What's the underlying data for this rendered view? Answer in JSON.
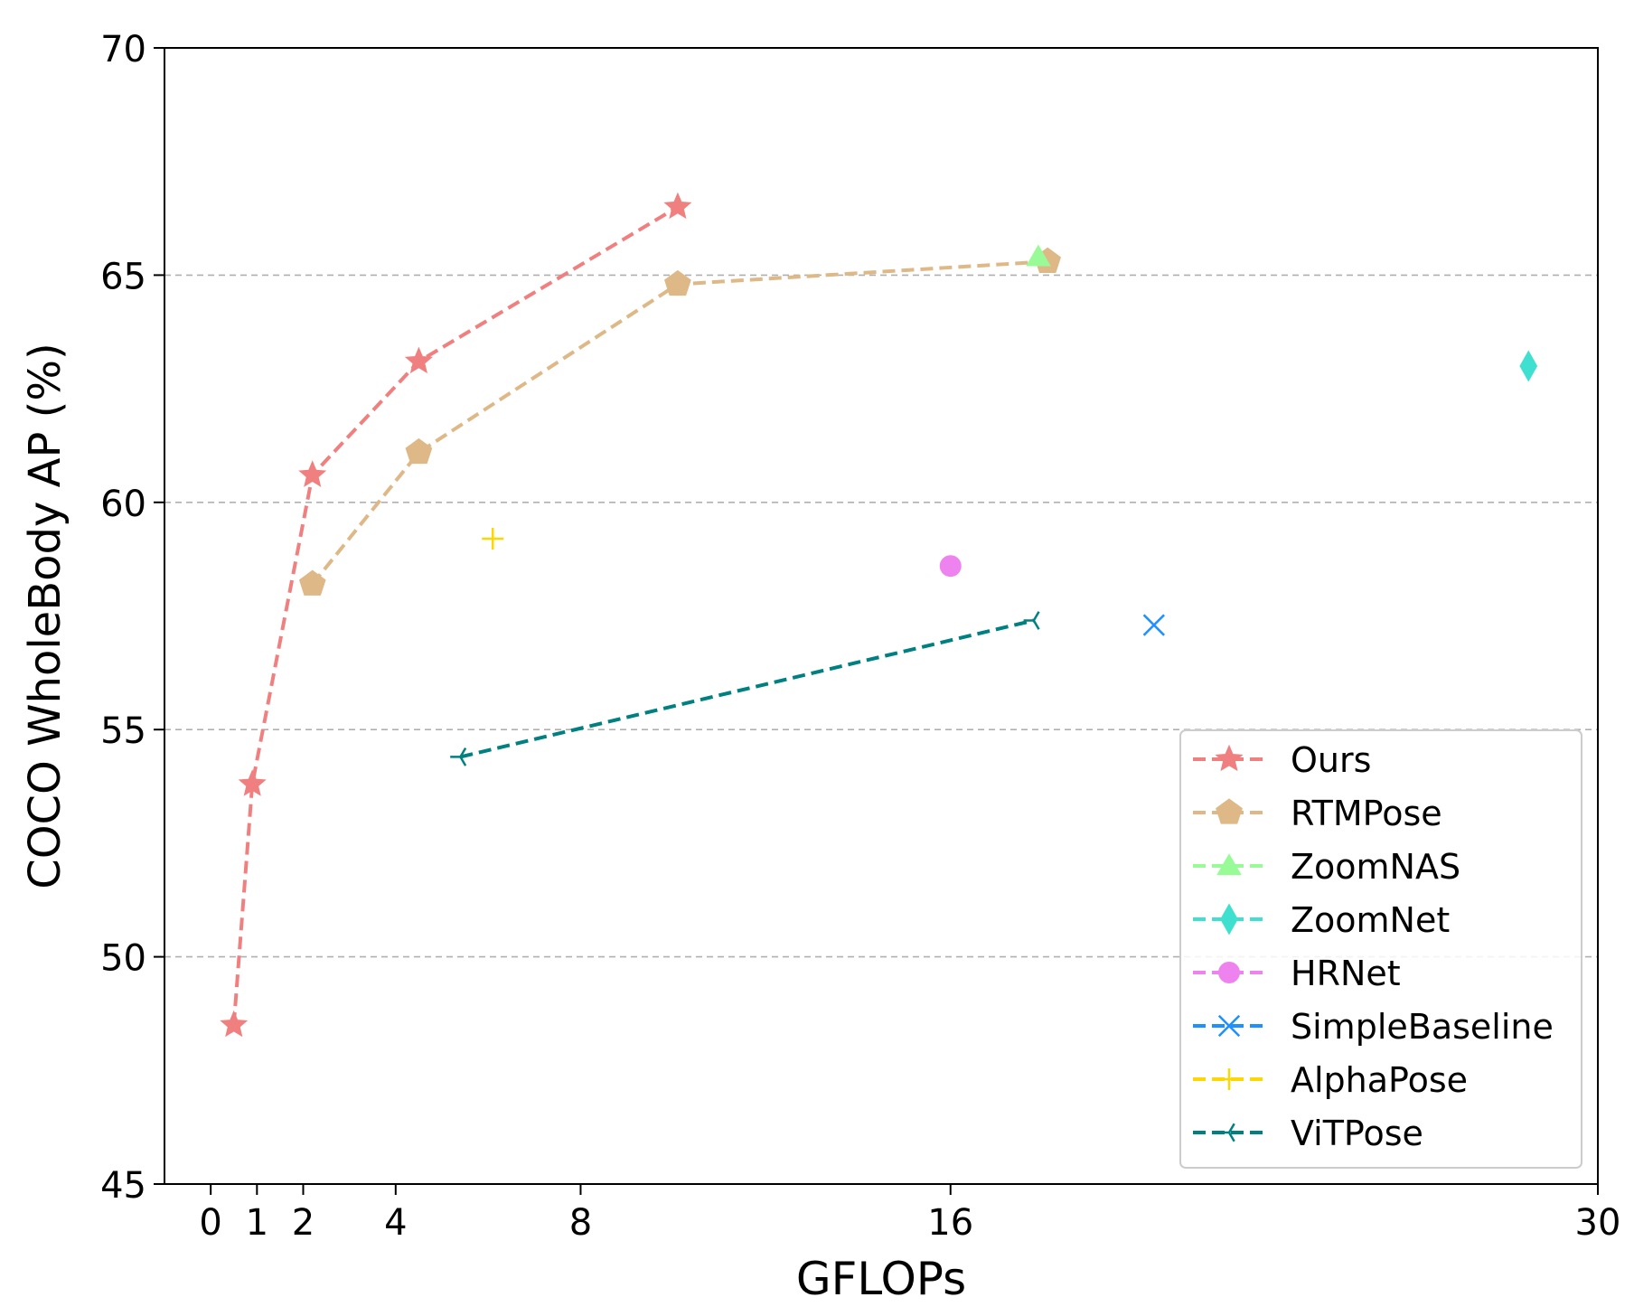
{
  "chart_data": {
    "type": "line",
    "title": "",
    "xlabel": "GFLOPs",
    "ylabel": "COCO WholeBody AP (%)",
    "xlim": [
      -1,
      30
    ],
    "ylim": [
      45,
      70
    ],
    "xticks": [
      0,
      1,
      2,
      4,
      8,
      16,
      30
    ],
    "xtick_labels": [
      "0",
      "1",
      "2",
      "4",
      "8",
      "16",
      "30"
    ],
    "yticks": [
      45,
      50,
      55,
      60,
      65,
      70
    ],
    "ytick_labels": [
      "45",
      "50",
      "55",
      "60",
      "65",
      "70"
    ],
    "grid": "horizontal dashed at y ticks",
    "legend_position": "lower-right",
    "series": [
      {
        "name": "Ours",
        "color": "#f08080",
        "marker": "star",
        "linestyle": "dashed",
        "x": [
          0.5,
          0.9,
          2.2,
          4.5,
          10.1
        ],
        "y": [
          48.5,
          53.8,
          60.6,
          63.1,
          66.5
        ]
      },
      {
        "name": "RTMPose",
        "color": "#deb887",
        "marker": "pentagon",
        "linestyle": "dashed",
        "x": [
          2.2,
          4.5,
          10.1,
          18.1
        ],
        "y": [
          58.2,
          61.1,
          64.8,
          65.3
        ]
      },
      {
        "name": "ZoomNAS",
        "color": "#98fb98",
        "marker": "triangle",
        "linestyle": "dashed",
        "x": [
          17.9
        ],
        "y": [
          65.4
        ]
      },
      {
        "name": "ZoomNet",
        "color": "#40e0d0",
        "marker": "diamond",
        "linestyle": "dashed",
        "x": [
          28.5
        ],
        "y": [
          63.0
        ]
      },
      {
        "name": "HRNet",
        "color": "#ee82ee",
        "marker": "circle",
        "linestyle": "dashed",
        "x": [
          16.0
        ],
        "y": [
          58.6
        ]
      },
      {
        "name": "SimpleBaseline",
        "color": "#1e90ff",
        "marker": "x",
        "linestyle": "dashed",
        "x": [
          20.4
        ],
        "y": [
          57.3
        ]
      },
      {
        "name": "AlphaPose",
        "color": "#ffd700",
        "marker": "plus",
        "linestyle": "dashed",
        "x": [
          6.1
        ],
        "y": [
          59.2
        ]
      },
      {
        "name": "ViTPose",
        "color": "#008080",
        "marker": "tri_left",
        "linestyle": "dashed",
        "x": [
          5.4,
          17.8
        ],
        "y": [
          54.4,
          57.4
        ]
      }
    ]
  }
}
